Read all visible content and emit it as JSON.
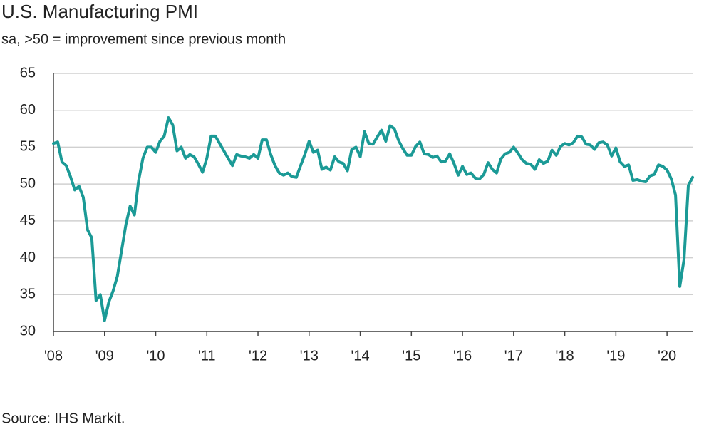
{
  "chart_data": {
    "type": "line",
    "title": "U.S. Manufacturing PMI",
    "subtitle": "sa, >50 = improvement since previous month",
    "source": "Source: IHS Markit.",
    "categories": [
      "'08",
      null,
      null,
      null,
      null,
      null,
      null,
      null,
      null,
      null,
      null,
      null,
      "'09",
      null,
      null,
      null,
      null,
      null,
      null,
      null,
      null,
      null,
      null,
      null,
      "'10",
      null,
      null,
      null,
      null,
      null,
      null,
      null,
      null,
      null,
      null,
      null,
      "'11",
      null,
      null,
      null,
      null,
      null,
      null,
      null,
      null,
      null,
      null,
      null,
      "'12",
      null,
      null,
      null,
      null,
      null,
      null,
      null,
      null,
      null,
      null,
      null,
      "'13",
      null,
      null,
      null,
      null,
      null,
      null,
      null,
      null,
      null,
      null,
      null,
      "'14",
      null,
      null,
      null,
      null,
      null,
      null,
      null,
      null,
      null,
      null,
      null,
      "'15",
      null,
      null,
      null,
      null,
      null,
      null,
      null,
      null,
      null,
      null,
      null,
      "'16",
      null,
      null,
      null,
      null,
      null,
      null,
      null,
      null,
      null,
      null,
      null,
      "'17",
      null,
      null,
      null,
      null,
      null,
      null,
      null,
      null,
      null,
      null,
      null,
      "'18",
      null,
      null,
      null,
      null,
      null,
      null,
      null,
      null,
      null,
      null,
      null,
      "'19",
      null,
      null,
      null,
      null,
      null,
      null,
      null,
      null,
      null,
      null,
      null,
      "'20",
      null,
      null,
      null,
      null,
      null,
      null
    ],
    "series": [
      {
        "name": "U.S. Manufacturing PMI",
        "color": "#1b9a96",
        "values": [
          55.5,
          55.7,
          53,
          52.5,
          51,
          49.2,
          49.7,
          48.2,
          43.8,
          42.7,
          34.2,
          35,
          31.5,
          34,
          35.5,
          37.5,
          41,
          44.5,
          47,
          45.8,
          50.5,
          53.5,
          55,
          55,
          54.3,
          55.8,
          56.5,
          59,
          58,
          54.5,
          55,
          53.5,
          54,
          53.7,
          52.7,
          51.6,
          53.5,
          56.5,
          56.5,
          55.5,
          54.5,
          53.5,
          52.5,
          54,
          53.8,
          53.7,
          53.5,
          54,
          53.5,
          56,
          56,
          54,
          52.5,
          51.5,
          51.2,
          51.5,
          51,
          50.9,
          52.5,
          54,
          55.8,
          54.3,
          54.6,
          52,
          52.3,
          51.9,
          53.7,
          53,
          52.8,
          51.8,
          54.7,
          55,
          53.7,
          57.1,
          55.5,
          55.4,
          56.4,
          57.3,
          55.8,
          57.9,
          57.5,
          55.9,
          54.8,
          53.9,
          53.9,
          55.1,
          55.7,
          54.1,
          54,
          53.6,
          53.8,
          53,
          53.1,
          54.1,
          52.8,
          51.2,
          52.4,
          51.3,
          51.5,
          50.8,
          50.7,
          51.3,
          52.9,
          52,
          51.5,
          53.4,
          54.1,
          54.3,
          55,
          54.2,
          53.3,
          52.8,
          52.7,
          52,
          53.3,
          52.8,
          53.1,
          54.6,
          53.9,
          55.1,
          55.5,
          55.3,
          55.6,
          56.5,
          56.4,
          55.4,
          55.3,
          54.7,
          55.6,
          55.7,
          55.3,
          53.8,
          54.9,
          53,
          52.4,
          52.6,
          50.5,
          50.6,
          50.4,
          50.3,
          51.1,
          51.3,
          52.6,
          52.4,
          51.9,
          50.7,
          48.5,
          36.1,
          39.8,
          49.8,
          50.9
        ]
      }
    ],
    "ylim": [
      30,
      65
    ],
    "yticks": [
      30,
      35,
      40,
      45,
      50,
      55,
      60,
      65
    ],
    "grid": true
  }
}
